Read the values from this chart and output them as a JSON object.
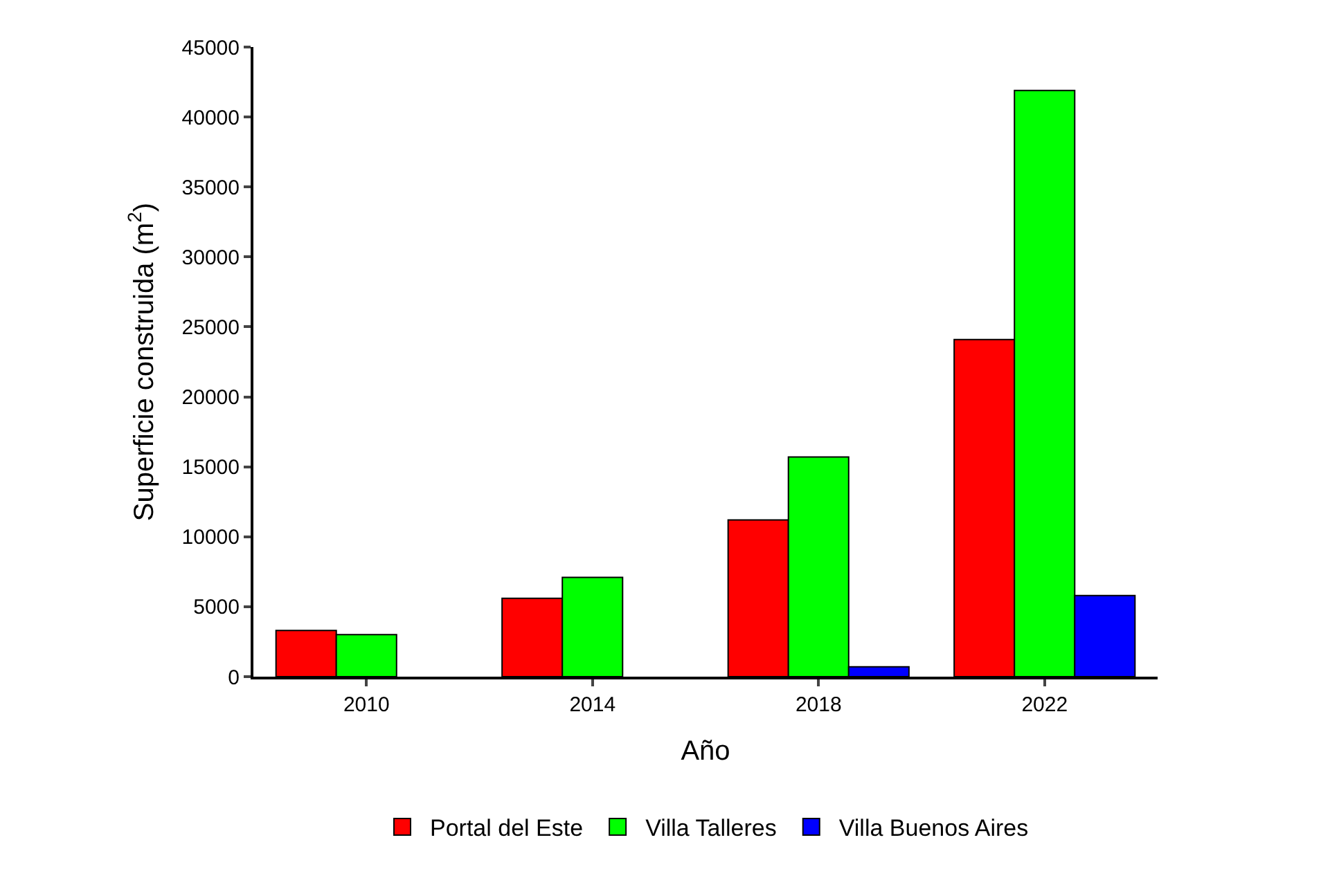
{
  "chart_data": {
    "type": "bar",
    "xlabel": "Año",
    "ylabel": "Superficie construida (m$^{2}$)",
    "categories": [
      "2010",
      "2014",
      "2018",
      "2022"
    ],
    "series": [
      {
        "name": "Portal del Este",
        "color": "#ff0000",
        "values": [
          3300,
          5600,
          11200,
          24100
        ]
      },
      {
        "name": "Villa Talleres",
        "color": "#00ff00",
        "values": [
          3000,
          7100,
          15700,
          41900
        ]
      },
      {
        "name": "Villa Buenos Aires",
        "color": "#0000ff",
        "values": [
          null,
          null,
          700,
          5800
        ]
      }
    ],
    "ylim": [
      0,
      45000
    ],
    "yticks": [
      0,
      5000,
      10000,
      15000,
      20000,
      25000,
      30000,
      35000,
      40000,
      45000
    ],
    "legend": "bottom"
  }
}
